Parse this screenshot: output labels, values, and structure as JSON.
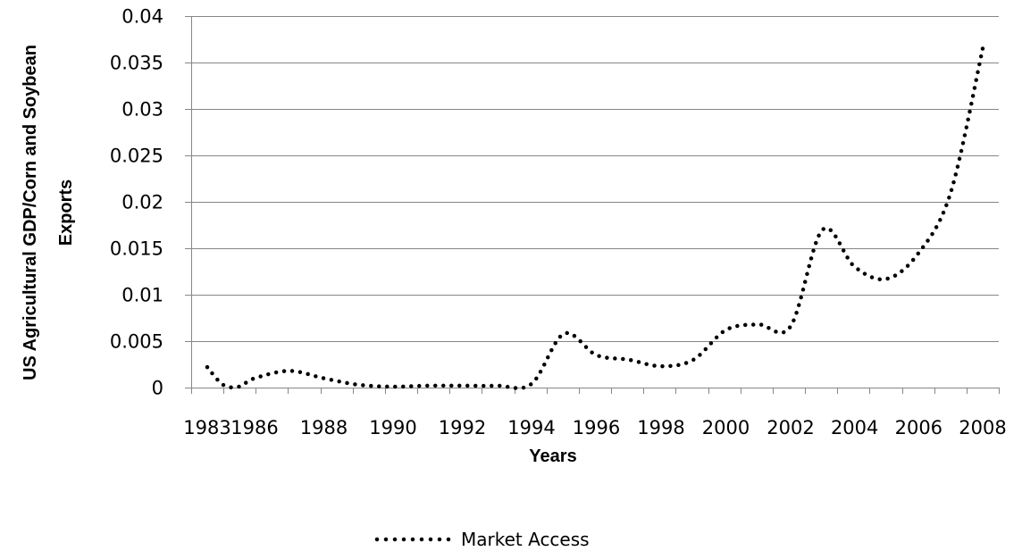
{
  "chart_data": {
    "type": "line",
    "xlabel": "Years",
    "ylabel_lines": [
      "US Agricultural GDP/Corn and Soybean",
      "Exports"
    ],
    "x_tick_labels": [
      "1983",
      "1986",
      "1988",
      "1990",
      "1992",
      "1994",
      "1996",
      "1998",
      "2000",
      "2002",
      "2004",
      "2006",
      "2008"
    ],
    "y_tick_labels": [
      "0",
      "0.005",
      "0.01",
      "0.015",
      "0.02",
      "0.025",
      "0.03",
      "0.035",
      "0.04"
    ],
    "ylim": [
      0,
      0.04
    ],
    "grid": true,
    "legend_position": "bottom",
    "series": [
      {
        "name": "Market Access",
        "line_style": "dotted",
        "color": "#000000",
        "x": [
          1983,
          1984,
          1985,
          1986,
          1987,
          1988,
          1989,
          1990,
          1991,
          1992,
          1993,
          1994,
          1995,
          1996,
          1997,
          1998,
          1999,
          2000,
          2001,
          2002,
          2003,
          2004,
          2005,
          2006,
          2007,
          2008
        ],
        "values": [
          0.0022,
          0.0003,
          0.0001,
          0.001,
          0.0018,
          0.001,
          0.0003,
          0.0001,
          0.0002,
          0.0002,
          0.0002,
          0.0004,
          0.0058,
          0.0035,
          0.003,
          0.0023,
          0.003,
          0.0062,
          0.0068,
          0.0066,
          0.017,
          0.013,
          0.0117,
          0.0145,
          0.021,
          0.0365
        ]
      }
    ]
  }
}
